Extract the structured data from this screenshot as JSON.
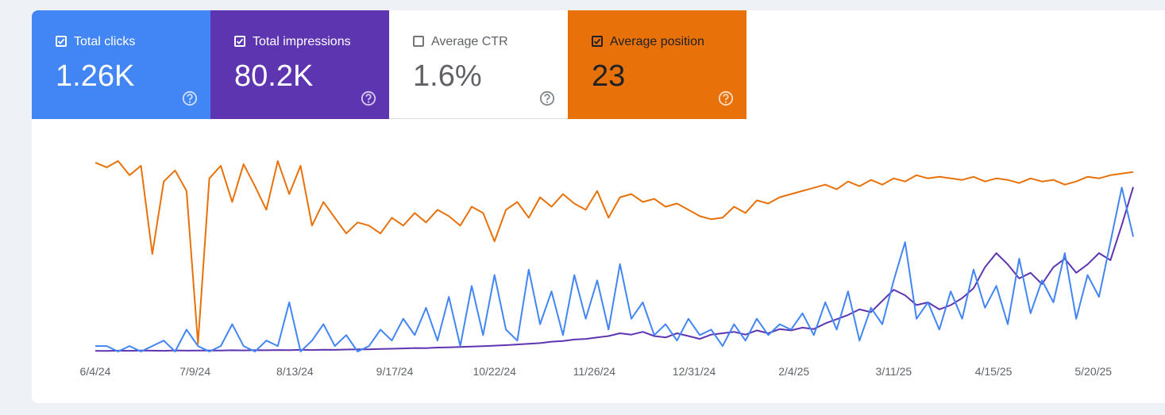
{
  "metrics": [
    {
      "label": "Total clicks",
      "value": "1.26K",
      "checked": true,
      "color": "#4285f4",
      "text_color": "#ffffff"
    },
    {
      "label": "Total impressions",
      "value": "80.2K",
      "checked": true,
      "color": "#5e35b1",
      "text_color": "#ffffff"
    },
    {
      "label": "Average CTR",
      "value": "1.6%",
      "checked": false,
      "color": "#ffffff",
      "text_color": "#5f6368"
    },
    {
      "label": "Average position",
      "value": "23",
      "checked": true,
      "color": "#e8710a",
      "text_color": "#202124"
    }
  ],
  "chart_data": {
    "type": "line",
    "x": [
      0,
      4,
      8,
      12,
      16,
      20,
      24,
      28,
      32,
      36,
      40,
      44,
      48,
      52,
      56,
      60,
      64,
      68,
      72,
      76,
      80,
      84,
      88,
      92,
      96,
      100,
      104,
      108,
      112,
      116,
      120,
      124,
      128,
      132,
      136,
      140,
      144,
      148,
      152,
      156,
      160,
      164,
      168,
      172,
      176,
      180,
      184,
      188,
      192,
      196,
      200,
      204,
      208,
      212,
      216,
      220,
      224,
      228,
      232,
      236,
      240,
      244,
      248,
      252,
      256,
      260,
      264,
      268,
      272,
      276,
      280,
      284,
      288,
      292,
      296,
      300,
      304,
      308,
      312,
      316,
      320,
      324,
      328,
      332,
      336,
      340,
      344,
      348,
      352,
      356,
      360,
      364
    ],
    "xlim": [
      0,
      364
    ],
    "xticks": [
      {
        "value": 0,
        "label": "6/4/24"
      },
      {
        "value": 35,
        "label": "7/9/24"
      },
      {
        "value": 70,
        "label": "8/13/24"
      },
      {
        "value": 105,
        "label": "9/17/24"
      },
      {
        "value": 140,
        "label": "10/22/24"
      },
      {
        "value": 175,
        "label": "11/26/24"
      },
      {
        "value": 210,
        "label": "12/31/24"
      },
      {
        "value": 245,
        "label": "2/4/25"
      },
      {
        "value": 280,
        "label": "3/11/25"
      },
      {
        "value": 315,
        "label": "4/15/25"
      },
      {
        "value": 350,
        "label": "5/20/25"
      }
    ],
    "series": [
      {
        "color": "#e8710a",
        "ylim": [
          5,
          130
        ],
        "reversed": true,
        "values": [
          10,
          13,
          9,
          18,
          12,
          68,
          22,
          15,
          28,
          125,
          20,
          12,
          35,
          11,
          25,
          40,
          9,
          30,
          12,
          50,
          35,
          45,
          55,
          48,
          50,
          55,
          45,
          50,
          42,
          48,
          40,
          44,
          50,
          38,
          42,
          60,
          40,
          35,
          45,
          32,
          38,
          30,
          36,
          40,
          28,
          45,
          32,
          30,
          35,
          33,
          38,
          36,
          40,
          44,
          46,
          45,
          38,
          42,
          34,
          36,
          32,
          30,
          28,
          26,
          24,
          27,
          22,
          25,
          21,
          24,
          20,
          22,
          18,
          20,
          19,
          20,
          21,
          19,
          22,
          20,
          21,
          23,
          20,
          22,
          21,
          24,
          22,
          19,
          20,
          18,
          17,
          16
        ]
      },
      {
        "color": "#5e35b1",
        "ylim": [
          0,
          1400
        ],
        "reversed": false,
        "values": [
          5,
          4,
          6,
          5,
          7,
          6,
          5,
          8,
          6,
          7,
          8,
          7,
          9,
          8,
          10,
          9,
          11,
          10,
          12,
          11,
          13,
          12,
          14,
          15,
          16,
          18,
          20,
          22,
          25,
          24,
          28,
          30,
          33,
          35,
          38,
          42,
          45,
          50,
          55,
          60,
          70,
          75,
          85,
          90,
          100,
          110,
          130,
          120,
          140,
          110,
          100,
          130,
          110,
          90,
          120,
          130,
          140,
          120,
          150,
          130,
          160,
          150,
          170,
          160,
          200,
          230,
          260,
          300,
          280,
          360,
          440,
          400,
          330,
          350,
          300,
          330,
          380,
          450,
          600,
          700,
          620,
          520,
          560,
          480,
          600,
          660,
          560,
          620,
          700,
          650,
          900,
          1170
        ]
      },
      {
        "color": "#4285f4",
        "ylim": [
          0,
          36
        ],
        "reversed": false,
        "values": [
          1,
          1,
          0,
          1,
          0,
          1,
          2,
          0,
          4,
          1,
          0,
          1,
          5,
          1,
          0,
          2,
          1,
          9,
          0,
          2,
          5,
          1,
          3,
          0,
          1,
          4,
          2,
          6,
          3,
          8,
          2,
          10,
          1,
          12,
          3,
          14,
          4,
          2,
          15,
          5,
          11,
          3,
          14,
          6,
          13,
          4,
          16,
          6,
          9,
          3,
          5,
          2,
          6,
          3,
          4,
          1,
          5,
          2,
          6,
          3,
          5,
          4,
          7,
          3,
          9,
          4,
          11,
          2,
          8,
          5,
          13,
          20,
          6,
          9,
          4,
          11,
          6,
          15,
          8,
          12,
          5,
          17,
          7,
          13,
          9,
          18,
          6,
          14,
          10,
          20,
          30,
          21
        ]
      }
    ]
  }
}
